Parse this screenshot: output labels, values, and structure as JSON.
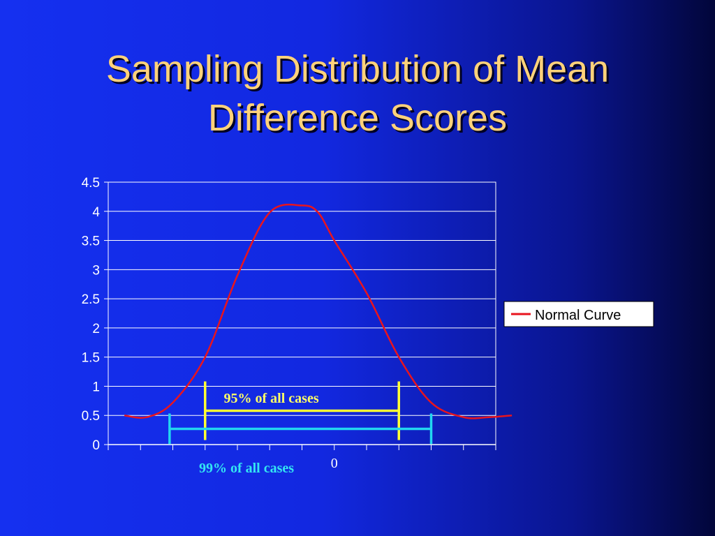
{
  "title_lines": [
    "Sampling Distribution of Mean",
    "Difference Scores"
  ],
  "chart_data": {
    "type": "line",
    "title": "Sampling Distribution of Mean Difference Scores",
    "xlabel": "",
    "ylabel": "",
    "ylim": [
      0,
      4.5
    ],
    "yticks": [
      "0",
      "0.5",
      "1",
      "1.5",
      "2",
      "2.5",
      "3",
      "3.5",
      "4",
      "4.5"
    ],
    "x_categories": 12,
    "grid": "horizontal",
    "legend_position": "right",
    "series": [
      {
        "name": "Normal Curve",
        "color": "#e8141e",
        "x": [
          0.5,
          1.2,
          2,
          3,
          4,
          5,
          6,
          6.5,
          7,
          8,
          9,
          10,
          11,
          11.8,
          12.5
        ],
        "values": [
          0.5,
          0.47,
          0.72,
          1.5,
          2.9,
          3.98,
          4.1,
          3.98,
          3.5,
          2.6,
          1.5,
          0.72,
          0.47,
          0.47,
          0.5
        ]
      }
    ],
    "annotations": {
      "zero_label": "0",
      "inner_label": "95% of all cases",
      "outer_label": "99% of all cases"
    },
    "intervals": [
      {
        "label": "95% of all cases",
        "x_start": 3,
        "x_end": 9,
        "y": 0.58,
        "color": "#ffff33"
      },
      {
        "label": "99% of all cases",
        "x_start": 1.9,
        "x_end": 10,
        "y": 0.27,
        "color": "#22d6f0"
      }
    ]
  }
}
